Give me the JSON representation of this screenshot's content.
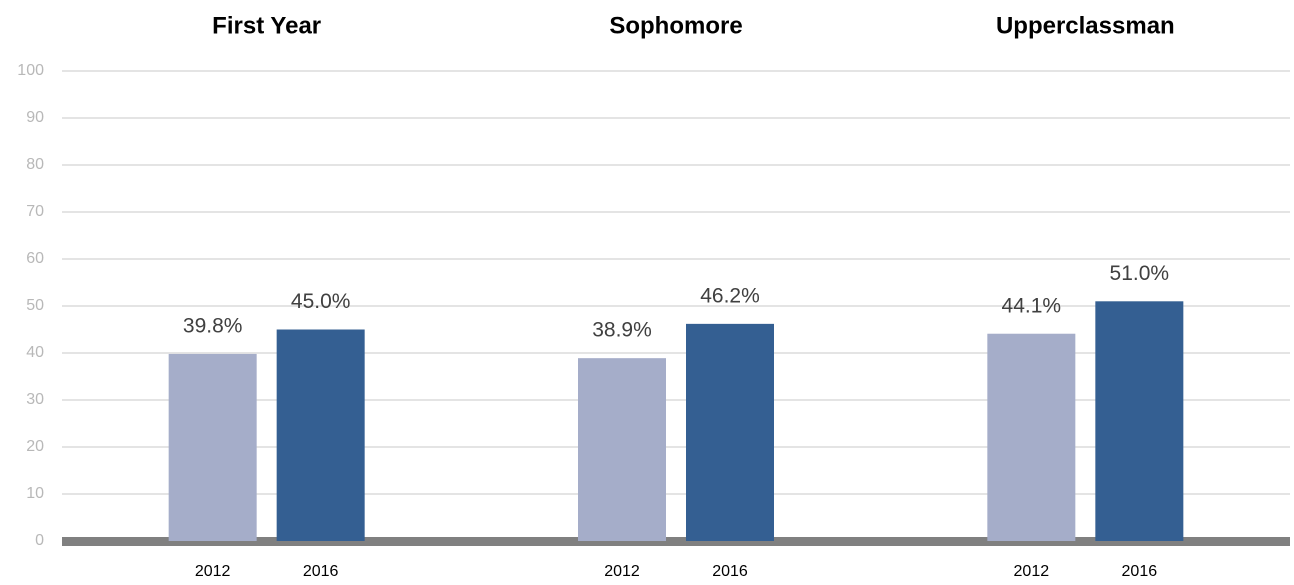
{
  "chart_data": {
    "type": "bar",
    "categories": [
      "First Year",
      "Sophomore",
      "Upperclassman"
    ],
    "series": [
      {
        "name": "2012",
        "color": "#a5adc9",
        "values": [
          39.8,
          38.9,
          44.1
        ],
        "value_labels": [
          "39.8%",
          "38.9%",
          "44.1%"
        ]
      },
      {
        "name": "2016",
        "color": "#345f92",
        "values": [
          45.0,
          46.2,
          51.0
        ],
        "value_labels": [
          "45.0%",
          "46.2%",
          "51.0%"
        ]
      }
    ],
    "ylim": [
      0,
      100
    ],
    "yticks": [
      0,
      10,
      20,
      30,
      40,
      50,
      60,
      70,
      80,
      90,
      100
    ],
    "grid": true
  }
}
